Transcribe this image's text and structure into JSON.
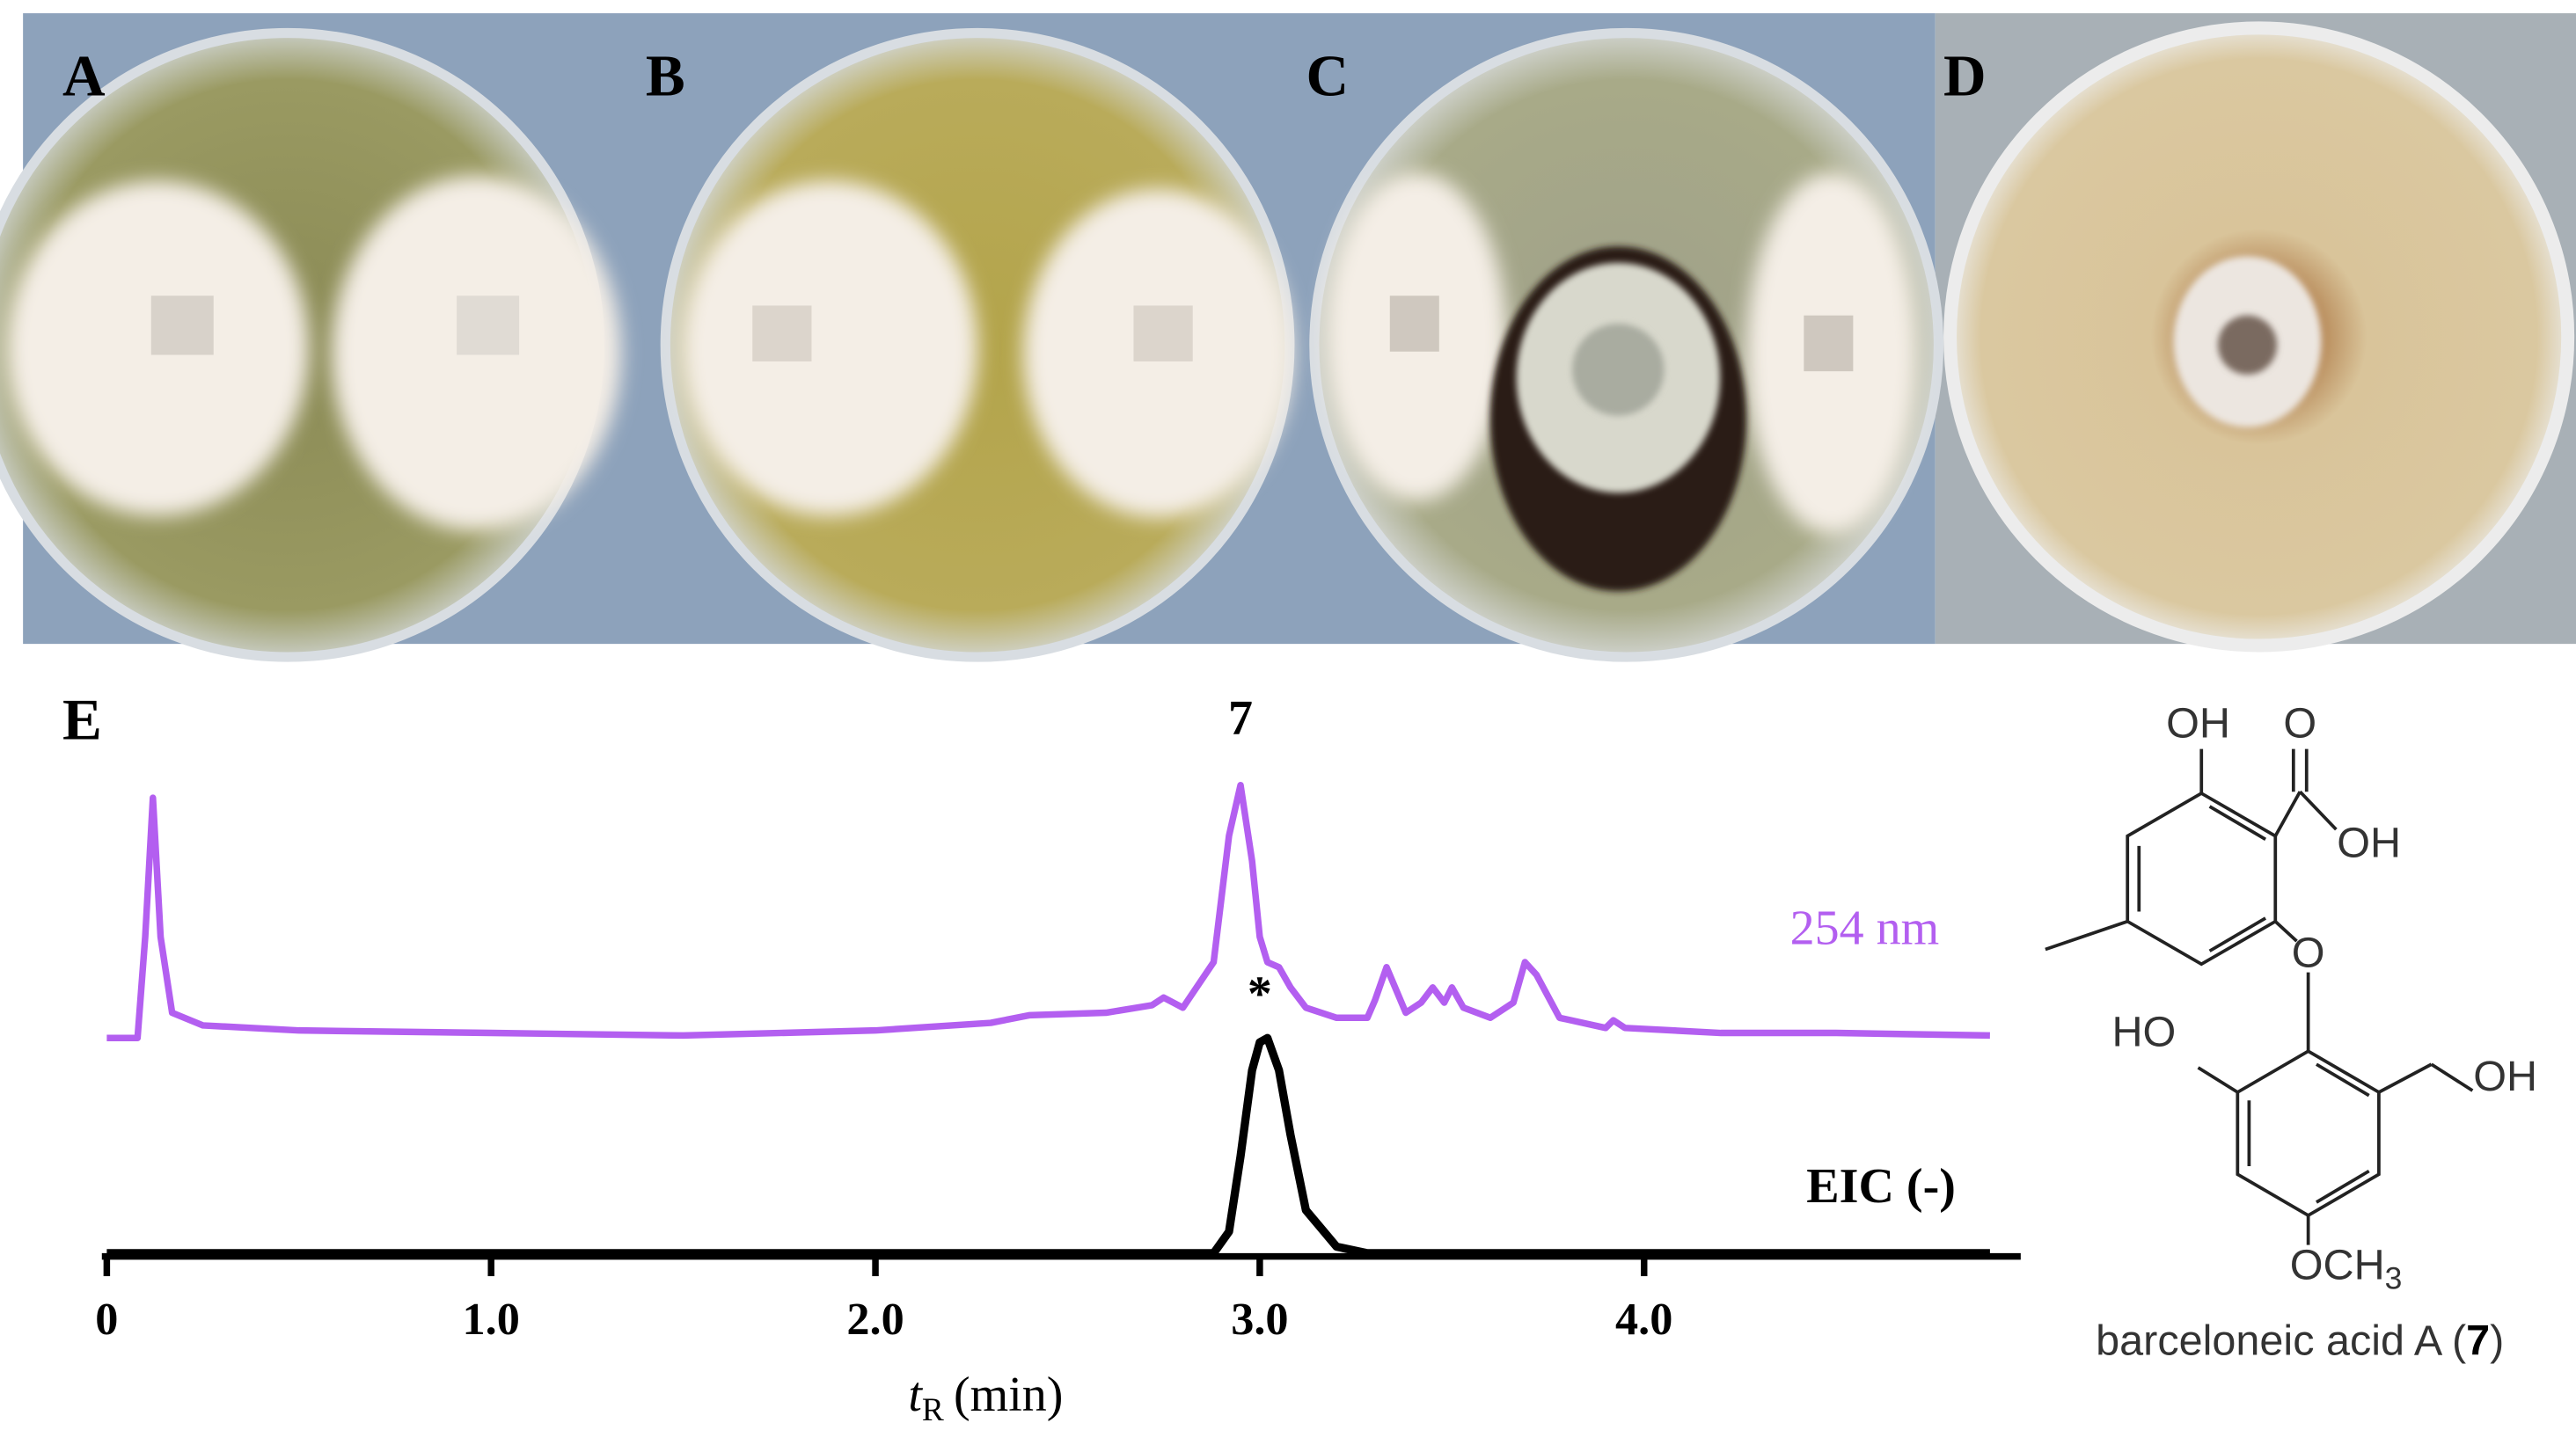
{
  "panel_labels": [
    "A",
    "B",
    "C",
    "D"
  ],
  "chart_data": {
    "type": "line",
    "panel_label": "E",
    "x": [
      0,
      0.08,
      0.1,
      0.12,
      0.14,
      0.17,
      0.25,
      0.5,
      1.0,
      1.5,
      2.0,
      2.3,
      2.4,
      2.6,
      2.72,
      2.75,
      2.8,
      2.88,
      2.92,
      2.95,
      2.98,
      3.0,
      3.02,
      3.05,
      3.08,
      3.12,
      3.2,
      3.28,
      3.3,
      3.33,
      3.38,
      3.42,
      3.45,
      3.48,
      3.5,
      3.53,
      3.6,
      3.66,
      3.69,
      3.72,
      3.78,
      3.9,
      3.92,
      3.95,
      4.2,
      4.5,
      4.9
    ],
    "series": [
      {
        "name": "254 nm",
        "color": "#b35ff0",
        "values": [
          0,
          0,
          40,
          95,
          40,
          10,
          5,
          3,
          2,
          1,
          3,
          6,
          9,
          10,
          13,
          16,
          12,
          30,
          80,
          100,
          70,
          40,
          30,
          28,
          20,
          12,
          8,
          8,
          15,
          28,
          10,
          14,
          20,
          14,
          20,
          12,
          8,
          14,
          30,
          25,
          8,
          4,
          7,
          4,
          2,
          2,
          1
        ]
      },
      {
        "name": "EIC (-)",
        "color": "#000000",
        "values": [
          0,
          0,
          0,
          0,
          0,
          0,
          0,
          0,
          0,
          0,
          0,
          0,
          0,
          0,
          0,
          0,
          0,
          0,
          10,
          45,
          85,
          98,
          100,
          85,
          55,
          20,
          3,
          0,
          0,
          0,
          0,
          0,
          0,
          0,
          0,
          0,
          0,
          0,
          0,
          0,
          0,
          0,
          0,
          0,
          0,
          0,
          0
        ]
      }
    ],
    "ylim": [
      0,
      100
    ],
    "xlim": [
      0,
      4.98
    ],
    "xticks": [
      0,
      {
        "value": 1,
        "label": "1.0"
      },
      {
        "value": 2,
        "label": "2.0"
      },
      {
        "value": 3,
        "label": "3.0"
      },
      {
        "value": 4,
        "label": "4.0"
      }
    ],
    "x_label": [
      "t",
      "R",
      "(min)"
    ],
    "annotations": [
      {
        "text": "7",
        "x": 2.95
      },
      {
        "text": "*",
        "x": 3.0
      }
    ]
  },
  "structure": {
    "labels": [
      "OH",
      "O",
      "OH",
      "O",
      "HO",
      "OH"
    ],
    "methoxy": [
      "OCH",
      "3"
    ],
    "caption": [
      "barceloneic acid A (",
      "7",
      ")"
    ]
  }
}
